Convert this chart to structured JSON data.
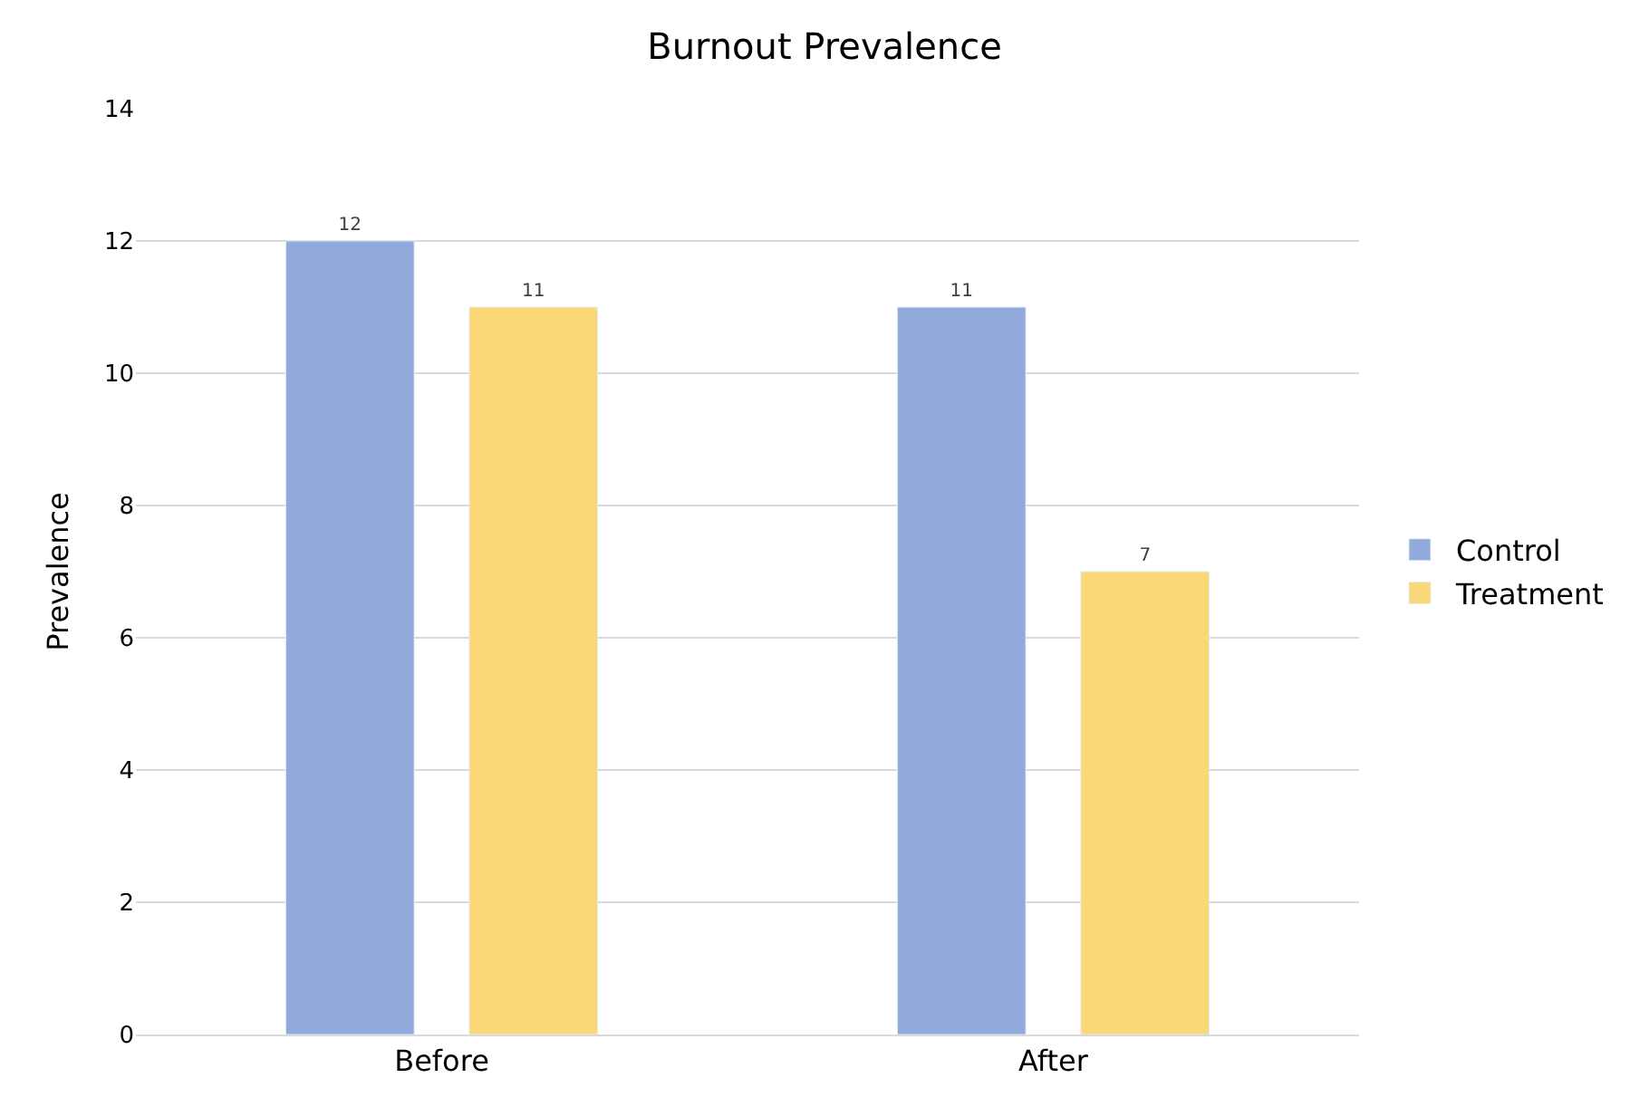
{
  "chart_data": {
    "type": "bar",
    "title": "Burnout Prevalence",
    "ylabel": "Prevalence",
    "categories": [
      "Before",
      "After"
    ],
    "series": [
      {
        "name": "Control",
        "color": "#92a9dc",
        "values": [
          12,
          11
        ]
      },
      {
        "name": "Treatment",
        "color": "#fad877",
        "values": [
          11,
          7
        ]
      }
    ],
    "ylim": [
      0,
      14
    ],
    "yticks": [
      0,
      2,
      4,
      6,
      8,
      10,
      12,
      14
    ],
    "grid": "y",
    "legend": "right",
    "data_labels": true
  }
}
